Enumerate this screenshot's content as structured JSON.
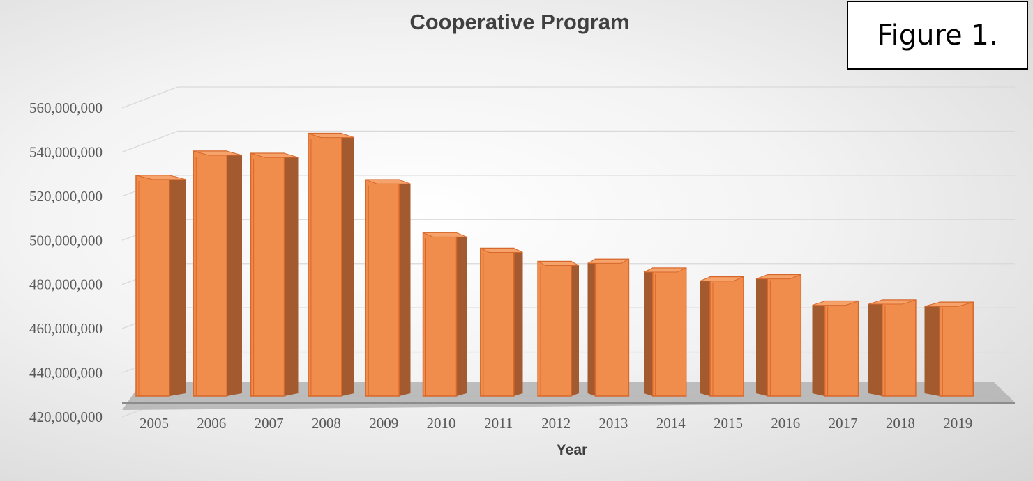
{
  "figure_label": "Figure 1.",
  "colors": {
    "bar_front": "#f08c4c",
    "bar_top": "#f5a26b",
    "bar_side": "#a35a2e",
    "bar_edge": "#d7672a",
    "floor": "#b3b3b3",
    "gridline": "#d9d9d9"
  },
  "chart_data": {
    "type": "bar",
    "style": "3d-column",
    "title": "Cooperative Program",
    "xlabel": "Year",
    "ylabel": "",
    "categories": [
      "2005",
      "2006",
      "2007",
      "2008",
      "2009",
      "2010",
      "2011",
      "2012",
      "2013",
      "2014",
      "2015",
      "2016",
      "2017",
      "2018",
      "2019"
    ],
    "values": [
      520000000,
      531000000,
      530000000,
      539000000,
      518000000,
      494000000,
      487000000,
      481000000,
      482000000,
      478000000,
      474000000,
      475000000,
      463000000,
      463500000,
      462500000
    ],
    "ylim": [
      420000000,
      560000000
    ],
    "yticks": [
      420000000,
      440000000,
      460000000,
      480000000,
      500000000,
      520000000,
      540000000,
      560000000
    ],
    "ytick_labels": [
      "420,000,000",
      "440,000,000",
      "460,000,000",
      "480,000,000",
      "500,000,000",
      "520,000,000",
      "540,000,000",
      "560,000,000"
    ],
    "grid": true,
    "legend": "none"
  }
}
